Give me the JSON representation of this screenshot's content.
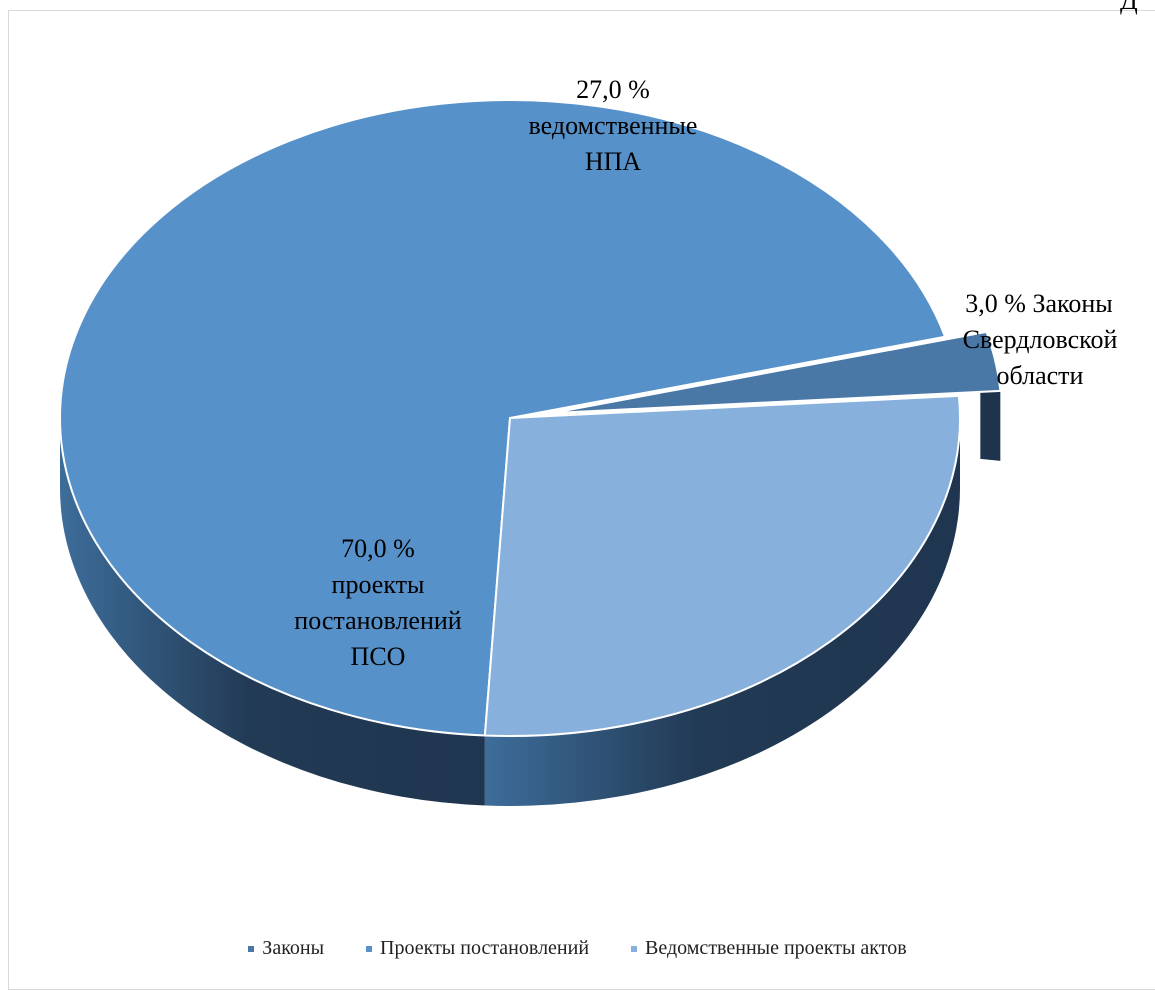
{
  "corner_text": "Д",
  "chart_data": {
    "type": "pie",
    "categories": [
      "Законы",
      "Проекты постановлений",
      "Ведомственные проекты актов"
    ],
    "values": [
      3.0,
      70.0,
      27.0
    ],
    "data_labels": [
      [
        "3,0 % Законы",
        "Свердловской",
        "области"
      ],
      [
        "70,0 %",
        "проекты",
        "постановлений",
        "ПСО"
      ],
      [
        "27,0 %",
        "ведомственные",
        "НПА"
      ]
    ],
    "colors": [
      "#4a78a6",
      "#5791c9",
      "#88b0dc"
    ],
    "exploded": "Законы",
    "three_d": true,
    "legend": "bottom"
  }
}
